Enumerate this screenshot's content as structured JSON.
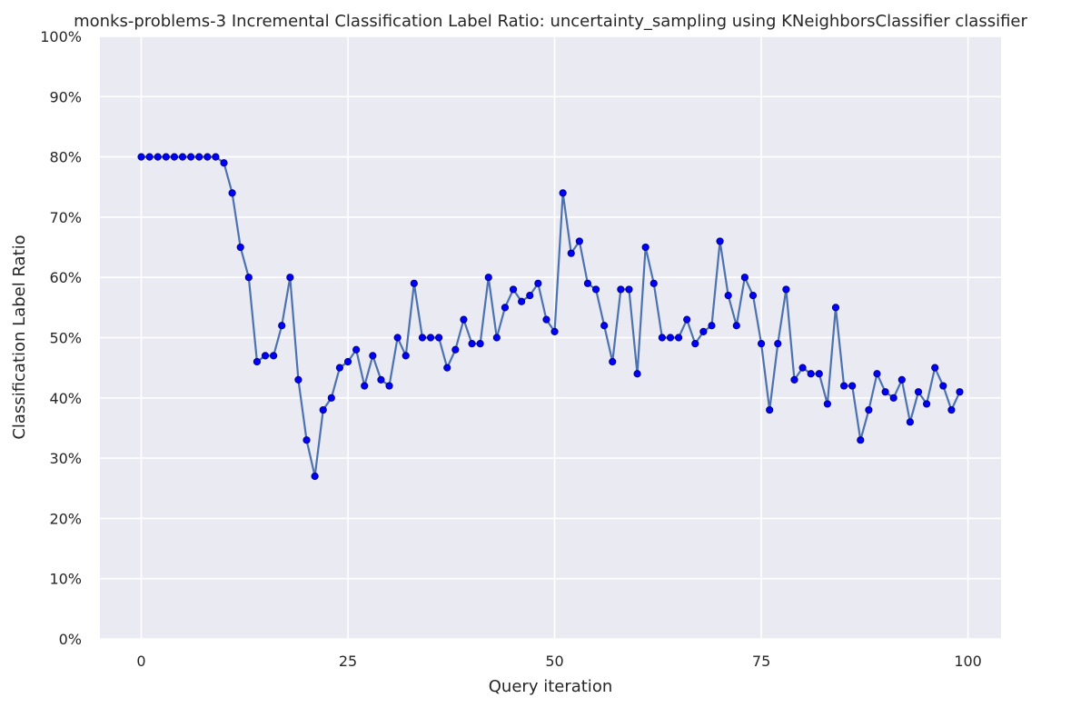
{
  "chart_data": {
    "type": "line",
    "title": "monks-problems-3 Incremental Classification Label Ratio: uncertainty_sampling using KNeighborsClassifier classifier",
    "xlabel": "Query iteration",
    "ylabel": "Classification Label Ratio",
    "xlim": [
      -5,
      104
    ],
    "ylim": [
      0,
      1
    ],
    "x_ticks": [
      0,
      25,
      50,
      75,
      100
    ],
    "y_ticks": [
      0,
      0.1,
      0.2,
      0.3,
      0.4,
      0.5,
      0.6,
      0.7,
      0.8,
      0.9,
      1.0
    ],
    "y_tick_labels": [
      "0%",
      "10%",
      "20%",
      "30%",
      "40%",
      "50%",
      "60%",
      "70%",
      "80%",
      "90%",
      "100%"
    ],
    "grid": true,
    "legend": "none",
    "colors": {
      "background": "#eaeaf2",
      "grid": "#ffffff",
      "line": "#4c72b0",
      "marker": "#0000ff",
      "marker_edge": "#00008b"
    },
    "x": [
      0,
      1,
      2,
      3,
      4,
      5,
      6,
      7,
      8,
      9,
      10,
      11,
      12,
      13,
      14,
      15,
      16,
      17,
      18,
      19,
      20,
      21,
      22,
      23,
      24,
      25,
      26,
      27,
      28,
      29,
      30,
      31,
      32,
      33,
      34,
      35,
      36,
      37,
      38,
      39,
      40,
      41,
      42,
      43,
      44,
      45,
      46,
      47,
      48,
      49,
      50,
      51,
      52,
      53,
      54,
      55,
      56,
      57,
      58,
      59,
      60,
      61,
      62,
      63,
      64,
      65,
      66,
      67,
      68,
      69,
      70,
      71,
      72,
      73,
      74,
      75,
      76,
      77,
      78,
      79,
      80,
      81,
      82,
      83,
      84,
      85,
      86,
      87,
      88,
      89,
      90,
      91,
      92,
      93,
      94,
      95,
      96,
      97,
      98,
      99
    ],
    "values": [
      0.8,
      0.8,
      0.8,
      0.8,
      0.8,
      0.8,
      0.8,
      0.8,
      0.8,
      0.8,
      0.79,
      0.74,
      0.65,
      0.6,
      0.46,
      0.47,
      0.47,
      0.52,
      0.6,
      0.43,
      0.33,
      0.27,
      0.38,
      0.4,
      0.45,
      0.46,
      0.48,
      0.42,
      0.47,
      0.43,
      0.42,
      0.5,
      0.47,
      0.59,
      0.5,
      0.5,
      0.5,
      0.45,
      0.48,
      0.53,
      0.49,
      0.49,
      0.6,
      0.5,
      0.55,
      0.58,
      0.56,
      0.57,
      0.59,
      0.53,
      0.51,
      0.74,
      0.64,
      0.66,
      0.59,
      0.58,
      0.52,
      0.46,
      0.58,
      0.58,
      0.44,
      0.65,
      0.59,
      0.5,
      0.5,
      0.5,
      0.53,
      0.49,
      0.51,
      0.52,
      0.66,
      0.57,
      0.52,
      0.6,
      0.57,
      0.49,
      0.38,
      0.49,
      0.58,
      0.43,
      0.45,
      0.44,
      0.44,
      0.39,
      0.55,
      0.42,
      0.42,
      0.33,
      0.38,
      0.44,
      0.41,
      0.4,
      0.43,
      0.36,
      0.41,
      0.39,
      0.45,
      0.42,
      0.38,
      0.41
    ]
  }
}
